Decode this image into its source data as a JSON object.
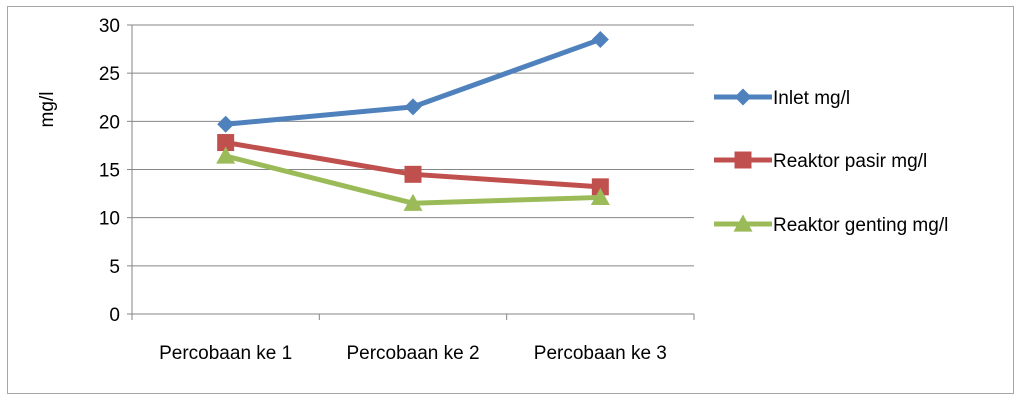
{
  "chart_data": {
    "type": "line",
    "title": "",
    "xlabel": "",
    "ylabel": "mg/l",
    "categories": [
      "Percobaan ke 1",
      "Percobaan ke 2",
      "Percobaan ke 3"
    ],
    "ylim": [
      0,
      30
    ],
    "yticks": [
      0,
      5,
      10,
      15,
      20,
      25,
      30
    ],
    "grid": true,
    "legend_position": "right",
    "series": [
      {
        "name": "Inlet mg/l",
        "values": [
          19.7,
          21.5,
          28.5
        ],
        "color": "#4f81bd",
        "marker": "diamond"
      },
      {
        "name": "Reaktor pasir mg/l",
        "values": [
          17.8,
          14.5,
          13.2
        ],
        "color": "#c0504d",
        "marker": "square"
      },
      {
        "name": "Reaktor genting mg/l",
        "values": [
          16.4,
          11.5,
          12.1
        ],
        "color": "#9bbb59",
        "marker": "triangle"
      }
    ]
  }
}
